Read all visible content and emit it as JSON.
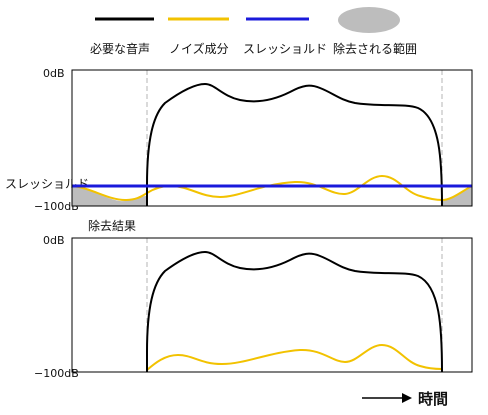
{
  "legend": {
    "items": [
      {
        "label": "必要な音声",
        "color": "#000000",
        "kind": "line"
      },
      {
        "label": "ノイズ成分",
        "color": "#f2c200",
        "kind": "line"
      },
      {
        "label": "スレッショルド",
        "color": "#1a1adb",
        "kind": "line"
      },
      {
        "label": "除去される範囲",
        "color": "#bdbdbd",
        "kind": "ellipse"
      }
    ]
  },
  "top_panel": {
    "y_top_label": "0dB",
    "y_bottom_label": "−100dB",
    "threshold_label": "スレッショルド"
  },
  "bottom_panel": {
    "title": "除去結果",
    "y_top_label": "0dB",
    "y_bottom_label": "−100dB"
  },
  "x_axis": {
    "label": "時間"
  },
  "colors": {
    "speech": "#000000",
    "noise": "#f2c200",
    "threshold": "#1a1adb",
    "removed": "#bdbdbd",
    "guide": "#b5b5b5"
  }
}
